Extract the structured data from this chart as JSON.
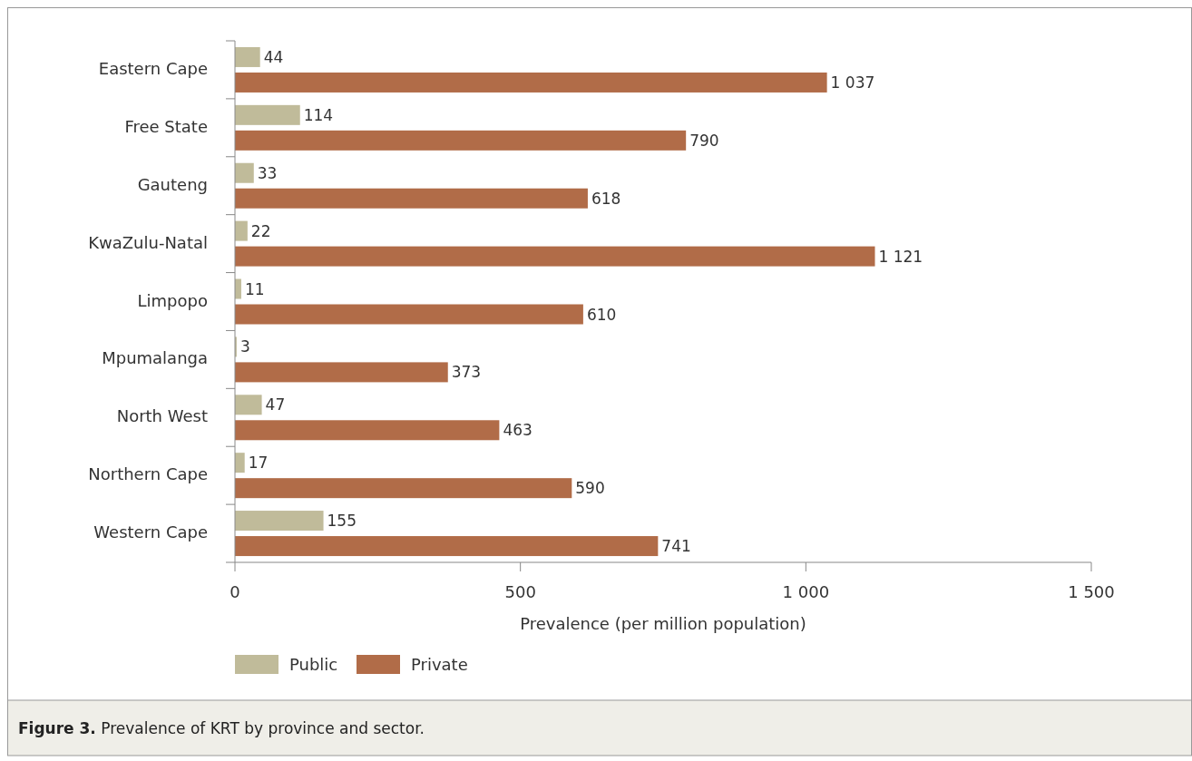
{
  "chart_data": {
    "type": "bar",
    "orientation": "horizontal",
    "title": "Figure 3. Prevalence of KRT by province and sector.",
    "xlabel": "Prevalence (per million population)",
    "categories": [
      "Eastern Cape",
      "Free State",
      "Gauteng",
      "KwaZulu-Natal",
      "Limpopo",
      "Mpumalanga",
      "North West",
      "Northern Cape",
      "Western Cape"
    ],
    "series": [
      {
        "name": "Public",
        "color": "#c0bb9a",
        "values": [
          44,
          114,
          33,
          22,
          11,
          3,
          47,
          17,
          155
        ]
      },
      {
        "name": "Private",
        "color": "#b16c48",
        "values": [
          1037,
          790,
          618,
          1121,
          610,
          373,
          463,
          590,
          741
        ],
        "value_labels": [
          "1 037",
          "790",
          "618",
          "1 121",
          "610",
          "373",
          "463",
          "590",
          "741"
        ]
      }
    ],
    "xlim": [
      0,
      1500
    ],
    "xticks": [
      0,
      500,
      {
        "value": 1000,
        "label": "1 000"
      },
      {
        "value": 1500,
        "label": "1 500"
      }
    ],
    "data_labels": true,
    "legend": "bottom left"
  }
}
